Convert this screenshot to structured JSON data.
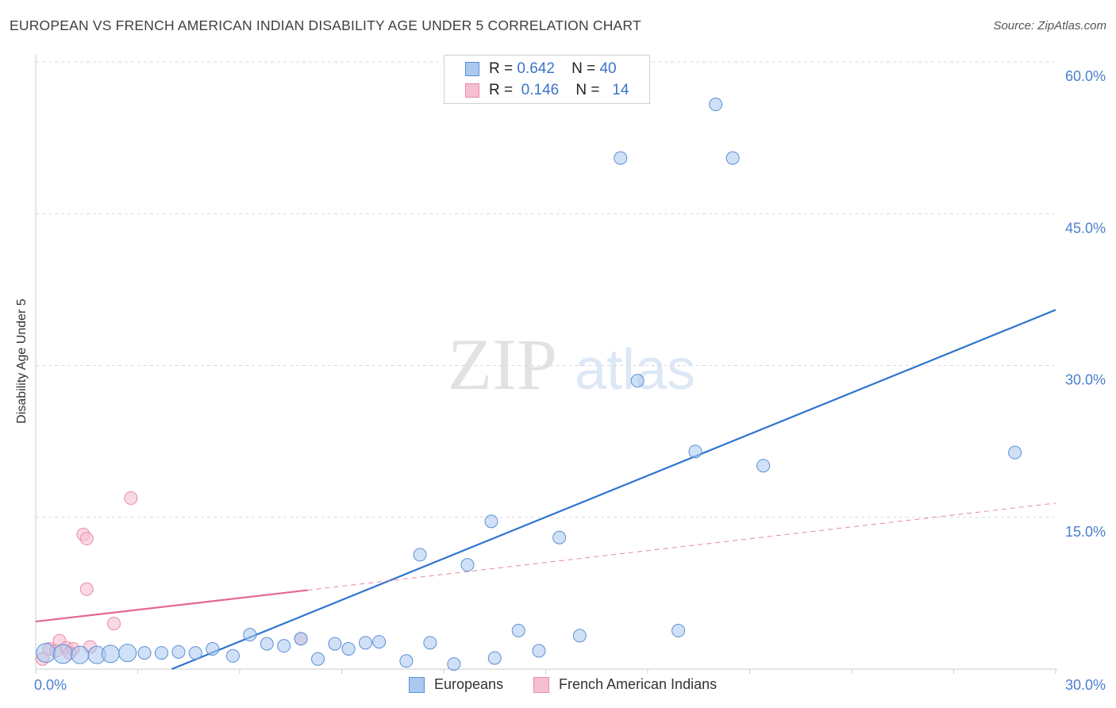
{
  "header": {
    "title": "EUROPEAN VS FRENCH AMERICAN INDIAN DISABILITY AGE UNDER 5 CORRELATION CHART",
    "source": "Source: ZipAtlas.com"
  },
  "watermark": {
    "zip": "ZIP",
    "atlas": "atlas"
  },
  "legend_top": {
    "rows": [
      {
        "r_label": "R =",
        "r_value": "0.642",
        "n_label": "N =",
        "n_value": "40"
      },
      {
        "r_label": "R =",
        "r_value": "0.146",
        "n_label": "N =",
        "n_value": "14"
      }
    ]
  },
  "legend_bottom": {
    "series1": "Europeans",
    "series2": "French American Indians"
  },
  "colors": {
    "blue_fill": "#aac8f0",
    "blue_stroke": "#5b8fd6",
    "blue_line": "#2f74d0",
    "pink_fill": "#f6bfd0",
    "pink_stroke": "#e88aa8",
    "pink_line": "#e36890",
    "grid": "#d9d9d9",
    "tick": "#4a7fd0"
  },
  "chart_data": {
    "type": "scatter",
    "title": "EUROPEAN VS FRENCH AMERICAN INDIAN DISABILITY AGE UNDER 5 CORRELATION CHART",
    "xlabel": "",
    "ylabel": "Disability Age Under 5",
    "xlim": [
      0,
      30
    ],
    "ylim": [
      0,
      60
    ],
    "x_tick_labels": [
      "0.0%",
      "30.0%"
    ],
    "y_ticks": [
      15,
      30,
      45,
      60
    ],
    "y_tick_labels": [
      "15.0%",
      "30.0%",
      "45.0%",
      "60.0%"
    ],
    "grid": true,
    "series": [
      {
        "name": "Europeans",
        "R": 0.642,
        "N": 40,
        "points": [
          [
            0.3,
            1.6
          ],
          [
            0.8,
            1.5
          ],
          [
            1.3,
            1.4
          ],
          [
            1.8,
            1.4
          ],
          [
            2.2,
            1.5
          ],
          [
            2.7,
            1.6
          ],
          [
            3.2,
            1.6
          ],
          [
            3.7,
            1.6
          ],
          [
            4.2,
            1.7
          ],
          [
            4.7,
            1.6
          ],
          [
            5.2,
            2.0
          ],
          [
            5.8,
            1.3
          ],
          [
            6.3,
            3.4
          ],
          [
            6.8,
            2.5
          ],
          [
            7.3,
            2.3
          ],
          [
            7.8,
            3.0
          ],
          [
            8.3,
            1.0
          ],
          [
            8.8,
            2.5
          ],
          [
            9.2,
            2.0
          ],
          [
            9.7,
            2.6
          ],
          [
            10.1,
            2.7
          ],
          [
            10.9,
            0.8
          ],
          [
            11.3,
            11.3
          ],
          [
            11.6,
            2.6
          ],
          [
            12.3,
            0.5
          ],
          [
            12.7,
            10.3
          ],
          [
            13.4,
            14.6
          ],
          [
            13.5,
            1.1
          ],
          [
            14.2,
            3.8
          ],
          [
            14.8,
            1.8
          ],
          [
            15.4,
            13.0
          ],
          [
            16.0,
            3.3
          ],
          [
            17.2,
            50.5
          ],
          [
            17.7,
            28.5
          ],
          [
            18.9,
            3.8
          ],
          [
            19.4,
            21.5
          ],
          [
            20.0,
            55.8
          ],
          [
            20.5,
            50.5
          ],
          [
            21.4,
            20.1
          ],
          [
            28.8,
            21.4
          ]
        ]
      },
      {
        "name": "French American Indians",
        "R": 0.146,
        "N": 14,
        "points": [
          [
            0.2,
            1.0
          ],
          [
            0.4,
            2.0
          ],
          [
            0.6,
            1.8
          ],
          [
            0.7,
            2.8
          ],
          [
            0.9,
            2.1
          ],
          [
            1.1,
            2.0
          ],
          [
            1.5,
            7.9
          ],
          [
            1.6,
            2.2
          ],
          [
            1.4,
            13.3
          ],
          [
            1.5,
            12.9
          ],
          [
            2.3,
            4.5
          ],
          [
            2.8,
            16.9
          ],
          [
            7.8,
            3.0
          ],
          [
            1.0,
            1.6
          ]
        ]
      }
    ],
    "trendlines": [
      {
        "series": "Europeans",
        "x": [
          4.0,
          30.0
        ],
        "y": [
          0.0,
          35.5
        ]
      },
      {
        "series": "French American Indians",
        "solid_x": [
          0.0,
          8.0
        ],
        "solid_y": [
          4.7,
          7.8
        ],
        "dashed_x": [
          8.0,
          30.0
        ],
        "dashed_y": [
          7.8,
          16.4
        ]
      }
    ]
  }
}
